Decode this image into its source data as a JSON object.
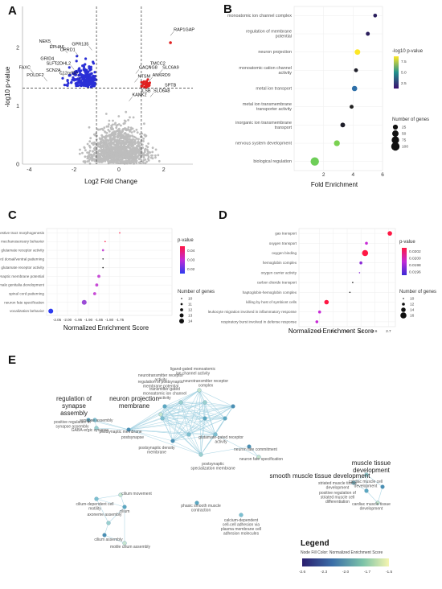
{
  "panel_labels": [
    "A",
    "B",
    "C",
    "D",
    "E"
  ],
  "chart_data": [
    {
      "id": "A",
      "type": "scatter",
      "title": "",
      "xlabel": "Log2 Fold Change",
      "ylabel": "-log10 p-value",
      "xlim": [
        -4.3,
        3.3
      ],
      "ylim": [
        0,
        2.7
      ],
      "xticks": [
        -4,
        -2,
        0,
        2
      ],
      "yticks": [
        0,
        1,
        2
      ],
      "thresholds": {
        "x": [
          -1,
          1
        ],
        "y": 1.3
      },
      "colors": {
        "down": "#2a2fd6",
        "up": "#e02020",
        "ns": "#bdbdbd"
      },
      "labels": [
        {
          "gene": "NEK5",
          "x": -2.9,
          "y": 2.0
        },
        {
          "gene": "EPHA6",
          "x": -2.3,
          "y": 1.9
        },
        {
          "gene": "OPRD1",
          "x": -1.8,
          "y": 1.85
        },
        {
          "gene": "GPR135",
          "x": -1.2,
          "y": 1.95
        },
        {
          "gene": "FAXC",
          "x": -3.8,
          "y": 1.55
        },
        {
          "gene": "GRID4",
          "x": -2.75,
          "y": 1.7
        },
        {
          "gene": "SLFT2DHL2",
          "x": -2.0,
          "y": 1.62
        },
        {
          "gene": "POLDF2",
          "x": -3.2,
          "y": 1.42
        },
        {
          "gene": "SCN2A",
          "x": -2.45,
          "y": 1.5
        },
        {
          "gene": "C12orf50",
          "x": -1.7,
          "y": 1.45
        },
        {
          "gene": "RAP1GAP",
          "x": 2.3,
          "y": 2.2
        },
        {
          "gene": "TMCC2",
          "x": 1.25,
          "y": 1.62
        },
        {
          "gene": "CACNG8",
          "x": 0.75,
          "y": 1.55
        },
        {
          "gene": "SLC6A9",
          "x": 1.8,
          "y": 1.55
        },
        {
          "gene": "ANKRD9",
          "x": 1.35,
          "y": 1.42
        },
        {
          "gene": "NTSM",
          "x": 0.7,
          "y": 1.4
        },
        {
          "gene": "SPTB",
          "x": 1.9,
          "y": 1.25
        },
        {
          "gene": "ILSB",
          "x": 0.85,
          "y": 1.15
        },
        {
          "gene": "SLC6A8",
          "x": 1.4,
          "y": 1.15
        },
        {
          "gene": "KANK2",
          "x": 0.45,
          "y": 1.08
        }
      ]
    },
    {
      "id": "B",
      "type": "scatter",
      "xlabel": "Fold Enrichment",
      "xlim": [
        0,
        6
      ],
      "xticks": [
        2,
        4,
        6
      ],
      "color_legend": {
        "title": "-log10 p-value",
        "ticks": [
          "7.5",
          "5.0",
          "2.5"
        ]
      },
      "size_legend": {
        "title": "Number of genes",
        "values": [
          25,
          50,
          75,
          100
        ]
      },
      "categories": [
        "monoatomic ion channel complex",
        "regulation of membrane potential",
        "neuron projection",
        "monoatomic cation channel activity",
        "metal ion transport",
        "metal ion transmembrane transporter activity",
        "inorganic ion transmembrane transport",
        "nervous system development",
        "biological regulation"
      ],
      "points": [
        {
          "x": 5.5,
          "genes": 10,
          "color": "#2a1e5c"
        },
        {
          "x": 5.0,
          "genes": 12,
          "color": "#2a1e5c"
        },
        {
          "x": 4.3,
          "genes": 35,
          "color": "#fde725"
        },
        {
          "x": 4.2,
          "genes": 12,
          "color": "#1f1f2a"
        },
        {
          "x": 4.1,
          "genes": 30,
          "color": "#2d6fa8"
        },
        {
          "x": 3.9,
          "genes": 12,
          "color": "#222222"
        },
        {
          "x": 3.3,
          "genes": 22,
          "color": "#1f1f2a"
        },
        {
          "x": 2.9,
          "genes": 40,
          "color": "#7ad151"
        },
        {
          "x": 1.4,
          "genes": 100,
          "color": "#6ece58"
        }
      ]
    },
    {
      "id": "C",
      "type": "scatter",
      "xlabel": "Normalized Enrichment Score",
      "xlim": [
        -2.1,
        -1.5
      ],
      "xticks": [
        "-2.05",
        "-2.00",
        "-1.95",
        "-1.90",
        "-1.85",
        "-1.80",
        "-1.75"
      ],
      "color_legend": {
        "title": "p-value",
        "ticks": [
          "0.04",
          "0.03",
          "0.02"
        ]
      },
      "size_legend": {
        "title": "Number of genes",
        "values": [
          10,
          11,
          12,
          13,
          14
        ]
      },
      "categories": [
        "embryonic digestive tract morphogenesis",
        "mechanosensory behavior",
        "glutamate receptor activity",
        "spinal cord dorsal/ventral patterning",
        "ionotropic glutamate receptor activity",
        "regulation of presynaptic membrane potential",
        "male genitalia development",
        "spinal cord patterning",
        "neuron fate specification",
        "vocalization behavior"
      ],
      "points": [
        {
          "x": -1.75,
          "genes": 10,
          "color": "#ff1744"
        },
        {
          "x": -1.82,
          "genes": 10,
          "color": "#ff1744"
        },
        {
          "x": -1.83,
          "genes": 11,
          "color": "#c74bd6"
        },
        {
          "x": -1.83,
          "genes": 10,
          "color": "#222222"
        },
        {
          "x": -1.83,
          "genes": 10,
          "color": "#222222"
        },
        {
          "x": -1.85,
          "genes": 12,
          "color": "#c74bd6"
        },
        {
          "x": -1.86,
          "genes": 12,
          "color": "#c74bd6"
        },
        {
          "x": -1.87,
          "genes": 12,
          "color": "#c74bd6"
        },
        {
          "x": -1.92,
          "genes": 14,
          "color": "#9b4bd6"
        },
        {
          "x": -2.08,
          "genes": 14,
          "color": "#2e3cf0"
        }
      ]
    },
    {
      "id": "D",
      "type": "scatter",
      "xlabel": "Normalized Enrichment Score",
      "xlim": [
        2.05,
        2.75
      ],
      "xticks": [
        "2.2",
        "2.3",
        "2.4",
        "2.5",
        "2.6",
        "2.7"
      ],
      "color_legend": {
        "title": "p-value",
        "ticks": [
          "0.0202",
          "0.0200",
          "0.0198",
          "0.0196"
        ]
      },
      "size_legend": {
        "title": "Number of genes",
        "values": [
          10,
          12,
          14,
          16
        ]
      },
      "categories": [
        "gas transport",
        "oxygen transport",
        "oxygen binding",
        "hemoglobin complex",
        "oxygen carrier activity",
        "carbon dioxide transport",
        "haptoglobin-hemoglobin complex",
        "killing by host of symbiont cells",
        "leukocyte migration involved in inflammatory response",
        "respiratory burst involved in defense response"
      ],
      "points": [
        {
          "x": 2.71,
          "genes": 14,
          "color": "#ff1744"
        },
        {
          "x": 2.54,
          "genes": 12,
          "color": "#c82ad6"
        },
        {
          "x": 2.53,
          "genes": 16,
          "color": "#ff1744"
        },
        {
          "x": 2.5,
          "genes": 12,
          "color": "#8a2ad6"
        },
        {
          "x": 2.49,
          "genes": 10,
          "color": "#8a2ad6"
        },
        {
          "x": 2.44,
          "genes": 10,
          "color": "#222222"
        },
        {
          "x": 2.42,
          "genes": 10,
          "color": "#222222"
        },
        {
          "x": 2.25,
          "genes": 14,
          "color": "#ff1744"
        },
        {
          "x": 2.2,
          "genes": 12,
          "color": "#c82ad6"
        },
        {
          "x": 2.18,
          "genes": 12,
          "color": "#c82ad6"
        }
      ]
    }
  ],
  "network": {
    "legend_title": "Legend",
    "legend_subtitle": "Node Fill Color: Normalized Enrichment Score",
    "legend_ticks": [
      "-2.6",
      "-2.3",
      "-2.0",
      "-1.7",
      "-1.5"
    ],
    "headers": {
      "left": [
        "regulation of",
        "synapse",
        "assembly"
      ],
      "neuron": [
        "neuron projection",
        "membrane"
      ],
      "smooth": "smooth muscle tissue development",
      "muscle": [
        "muscle tissue",
        "development"
      ]
    },
    "node_labels": [
      "positive regulation of synapse assembly",
      "synapse assembly",
      "GABA-ergic synapse",
      "postsynaptic membrane",
      "neurotransmitter receptor activity",
      "regulation of postsynaptic membrane potential",
      "postsynapse",
      "transmitter-gated monoatomic ion channel activity",
      "postsynaptic density membrane",
      "ligand-gated monoatomic ion channel activity",
      "neurotransmitter receptor complex",
      "glutamate-gated receptor activity",
      "postsynaptic specialization membrane",
      "neuron fate commitment",
      "neuron fate specification",
      "striated muscle tissue development",
      "cardiac muscle cell development",
      "cardiac muscle tissue development",
      "positive regulation of striated muscle cell differentiation",
      "cilium movement",
      "cilium",
      "cilium-dependent cell motility",
      "axoneme assembly",
      "cilium assembly",
      "motile cilium assembly",
      "phasic smooth muscle contraction",
      "calcium-dependent cell-cell adhesion via plasma membrane cell adhesion molecules"
    ]
  }
}
